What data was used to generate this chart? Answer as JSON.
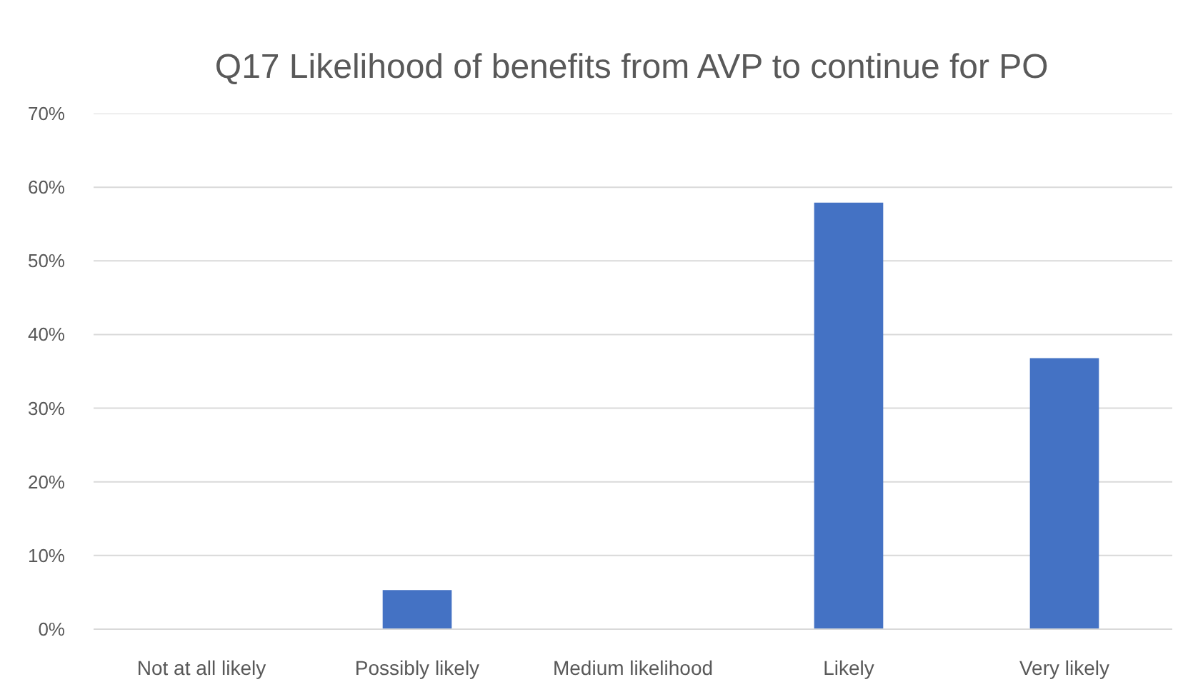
{
  "chart_data": {
    "type": "bar",
    "title": "Q17 Likelihood of benefits from AVP to continue for PO",
    "categories": [
      "Not at all likely",
      "Possibly likely",
      "Medium likelihood",
      "Likely",
      "Very likely"
    ],
    "values": [
      0,
      5.3,
      0,
      57.9,
      36.8
    ],
    "color": "#4472c4",
    "ylim": [
      0,
      70
    ],
    "yticks": [
      {
        "value": 0,
        "label": "0%"
      },
      {
        "value": 10,
        "label": "10%"
      },
      {
        "value": 20,
        "label": "20%"
      },
      {
        "value": 30,
        "label": "30%"
      },
      {
        "value": 40,
        "label": "40%"
      },
      {
        "value": 50,
        "label": "50%"
      },
      {
        "value": 60,
        "label": "60%"
      },
      {
        "value": 70,
        "label": "70%"
      }
    ],
    "grid": "y"
  }
}
